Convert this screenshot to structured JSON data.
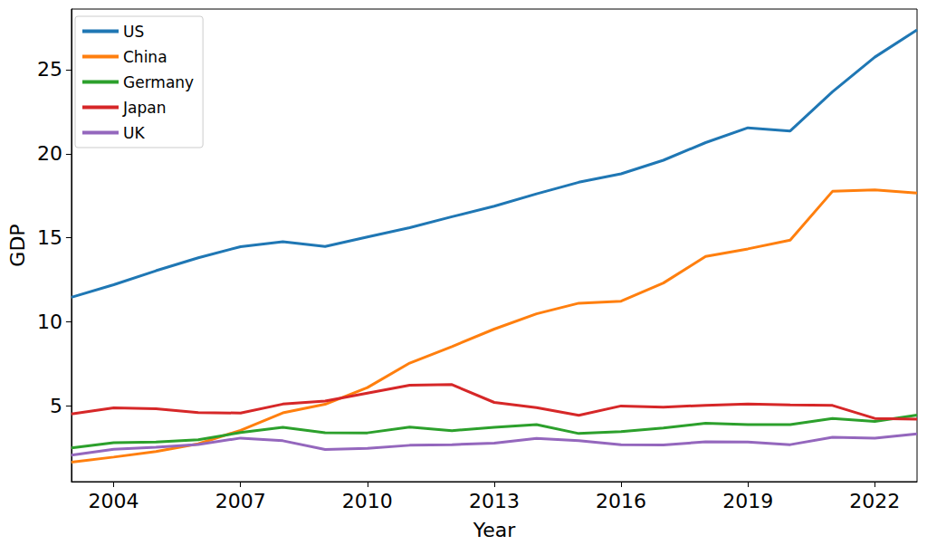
{
  "chart_data": {
    "type": "line",
    "x_label": "Year",
    "y_label": "GDP",
    "x": [
      2003,
      2004,
      2005,
      2006,
      2007,
      2008,
      2009,
      2010,
      2011,
      2012,
      2013,
      2014,
      2015,
      2016,
      2017,
      2018,
      2019,
      2020,
      2021,
      2022,
      2023
    ],
    "series": [
      {
        "name": "US",
        "color": "#1f77b4",
        "values": [
          11.46,
          12.21,
          13.04,
          13.81,
          14.47,
          14.77,
          14.48,
          15.05,
          15.6,
          16.25,
          16.88,
          17.61,
          18.3,
          18.8,
          19.61,
          20.66,
          21.54,
          21.35,
          23.68,
          25.74,
          27.36
        ]
      },
      {
        "name": "China",
        "color": "#ff7f0e",
        "values": [
          1.66,
          1.96,
          2.29,
          2.75,
          3.55,
          4.59,
          5.1,
          6.09,
          7.55,
          8.53,
          9.57,
          10.48,
          11.11,
          11.23,
          12.31,
          13.89,
          14.34,
          14.86,
          17.76,
          17.85,
          17.66
        ]
      },
      {
        "name": "Germany",
        "color": "#2ca02c",
        "values": [
          2.5,
          2.81,
          2.85,
          2.99,
          3.42,
          3.73,
          3.41,
          3.4,
          3.74,
          3.53,
          3.73,
          3.89,
          3.36,
          3.47,
          3.69,
          3.97,
          3.89,
          3.89,
          4.26,
          4.08,
          4.46
        ]
      },
      {
        "name": "Japan",
        "color": "#d62728",
        "values": [
          4.52,
          4.89,
          4.83,
          4.6,
          4.58,
          5.11,
          5.29,
          5.76,
          6.23,
          6.27,
          5.21,
          4.9,
          4.44,
          5.0,
          4.93,
          5.04,
          5.12,
          5.06,
          5.03,
          4.26,
          4.21
        ]
      },
      {
        "name": "UK",
        "color": "#9467bd",
        "values": [
          2.07,
          2.42,
          2.54,
          2.71,
          3.09,
          2.93,
          2.41,
          2.48,
          2.66,
          2.7,
          2.79,
          3.07,
          2.93,
          2.69,
          2.68,
          2.87,
          2.85,
          2.7,
          3.14,
          3.09,
          3.34
        ]
      }
    ],
    "xlim": [
      2003,
      2023
    ],
    "xticks": [
      2004,
      2007,
      2010,
      2013,
      2016,
      2019,
      2022
    ],
    "ylim": [
      0.5,
      28.6
    ],
    "yticks": [
      5,
      10,
      15,
      20,
      25
    ],
    "grid": false,
    "legend": "upper left"
  }
}
